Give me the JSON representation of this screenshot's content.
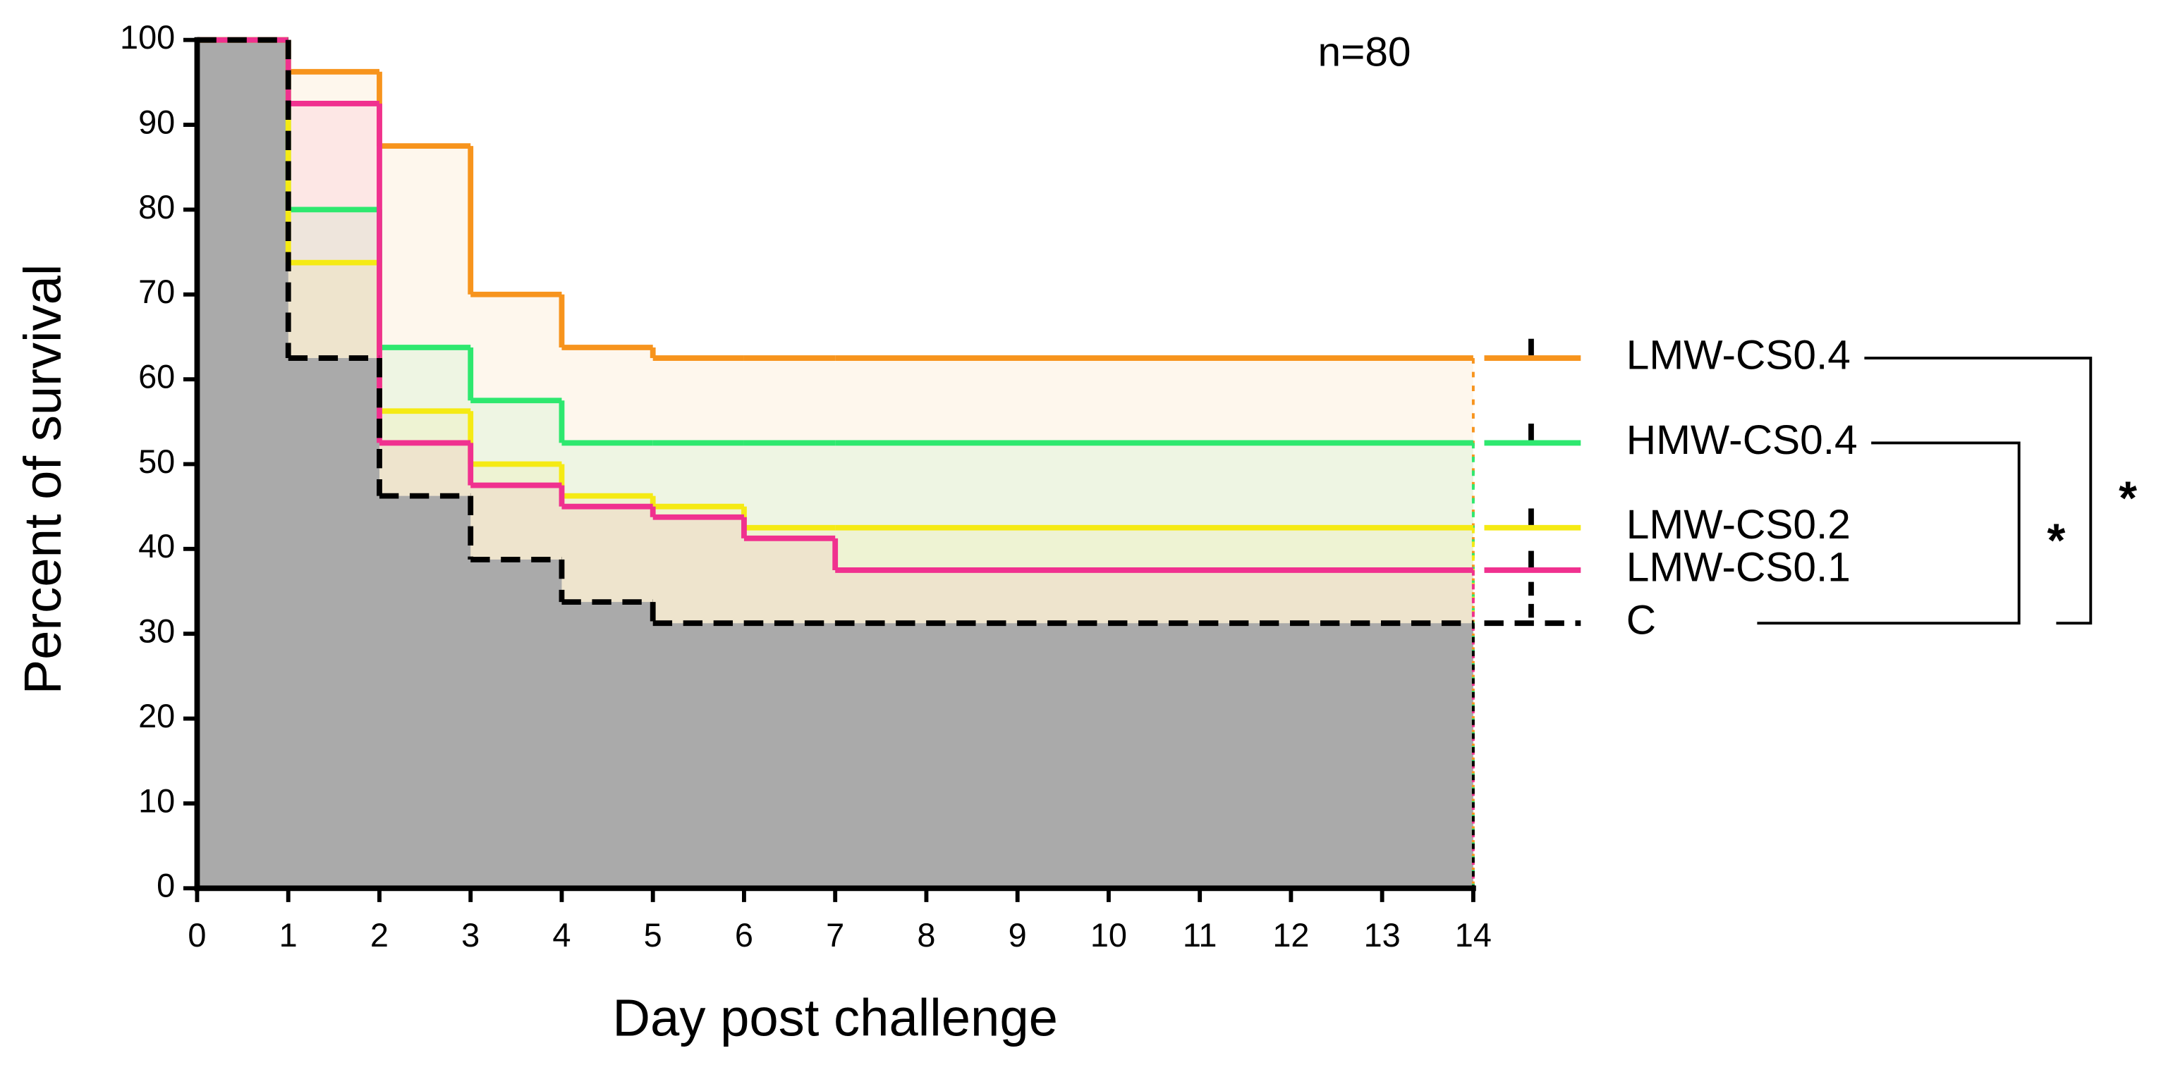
{
  "chart_data": {
    "type": "step",
    "annotation": "n=80",
    "x_label": "Day post challenge",
    "y_label": "Percent of survival",
    "x": [
      0,
      1,
      2,
      3,
      4,
      5,
      6,
      7,
      14
    ],
    "xlim": [
      0,
      14
    ],
    "xticks": [
      0,
      1,
      2,
      3,
      4,
      5,
      6,
      7,
      8,
      9,
      10,
      11,
      12,
      13,
      14
    ],
    "ylim": [
      0,
      100
    ],
    "yticks": [
      0,
      10,
      20,
      30,
      40,
      50,
      60,
      70,
      80,
      90,
      100
    ],
    "series": [
      {
        "name": "LMW-CS0.4",
        "color": "#f7941d",
        "values": [
          100,
          96.25,
          87.5,
          70,
          63.75,
          62.5,
          62.5,
          62.5,
          62.5
        ]
      },
      {
        "name": "HMW-CS0.4",
        "color": "#2ee86f",
        "values": [
          100,
          80,
          63.75,
          57.5,
          52.5,
          52.5,
          52.5,
          52.5,
          52.5
        ]
      },
      {
        "name": "LMW-CS0.2",
        "color": "#f5ea14",
        "values": [
          100,
          73.75,
          56.25,
          50,
          46.25,
          45,
          42.5,
          42.5,
          42.5
        ]
      },
      {
        "name": "LMW-CS0.1",
        "color": "#f0318f",
        "values": [
          100,
          92.5,
          52.5,
          47.5,
          45,
          43.75,
          41.25,
          37.5,
          37.5
        ]
      },
      {
        "name": "C",
        "color": "#000000",
        "dashed": true,
        "fill": "#aaaaaa",
        "values": [
          100,
          62.5,
          46.25,
          38.75,
          33.75,
          31.25,
          31.25,
          31.25,
          31.25
        ]
      }
    ],
    "brackets": [
      {
        "from": 1,
        "to": 4,
        "label": "*"
      },
      {
        "from": 0,
        "to": 4,
        "label": "*"
      }
    ]
  }
}
